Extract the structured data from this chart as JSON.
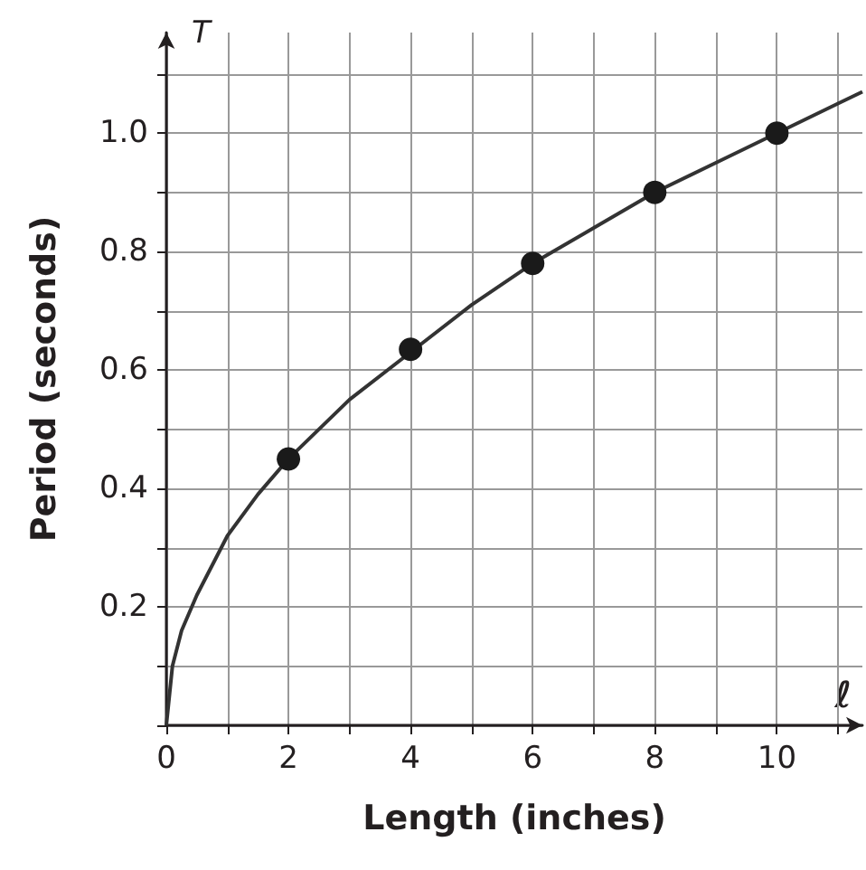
{
  "chart_data": {
    "type": "scatter",
    "xlabel": "Length (inches)",
    "ylabel": "Period (seconds)",
    "annotations": [
      "T",
      "ℓ"
    ],
    "xlim": [
      0,
      11.4
    ],
    "ylim": [
      0,
      1.17
    ],
    "xticks": [
      {
        "value": 0,
        "label": "0"
      },
      {
        "value": 1,
        "label": null
      },
      2,
      {
        "value": 3,
        "label": null
      },
      4,
      {
        "value": 5,
        "label": null
      },
      6,
      {
        "value": 7,
        "label": null
      },
      8,
      {
        "value": 9,
        "label": null
      },
      10,
      {
        "value": 11,
        "label": null
      }
    ],
    "yticks": [
      {
        "value": 0,
        "label": null
      },
      {
        "value": 0.1,
        "label": null
      },
      0.2,
      {
        "value": 0.3,
        "label": null
      },
      0.4,
      {
        "value": 0.5,
        "label": null
      },
      0.6,
      {
        "value": 0.7,
        "label": null
      },
      0.8,
      {
        "value": 0.9,
        "label": null
      },
      {
        "value": 1.0,
        "label": "1.0"
      },
      {
        "value": 1.1,
        "label": null
      }
    ],
    "grid": true,
    "marker": "circle",
    "series": [
      {
        "type": "line",
        "marker": "none",
        "color": "#333333",
        "x": [
          0,
          0.1,
          0.25,
          0.5,
          0.75,
          1,
          1.5,
          2,
          3,
          4,
          5,
          6,
          7,
          8,
          9,
          10,
          11,
          11.4
        ],
        "values": [
          0,
          0.1,
          0.16,
          0.22,
          0.27,
          0.32,
          0.39,
          0.45,
          0.55,
          0.63,
          0.71,
          0.78,
          0.84,
          0.9,
          0.95,
          1.0,
          1.05,
          1.07
        ]
      },
      {
        "color": "#1a1a1a",
        "x": [
          2,
          4,
          6,
          8,
          10
        ],
        "values": [
          0.45,
          0.635,
          0.78,
          0.9,
          1.0
        ]
      }
    ]
  }
}
